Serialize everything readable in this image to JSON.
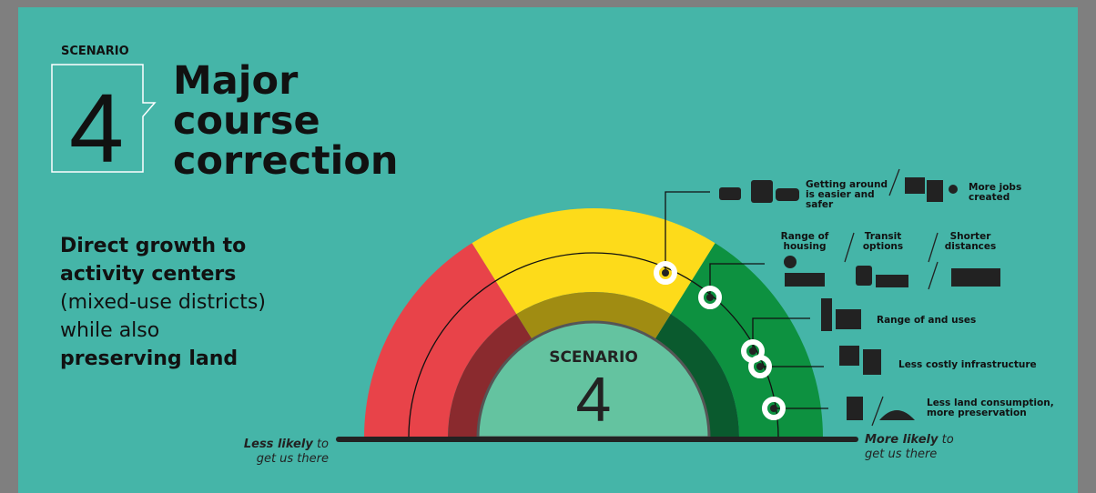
{
  "header": {
    "eyebrow": "SCENARIO",
    "number": "4",
    "title_lines": [
      "Major",
      "course",
      "correction"
    ]
  },
  "description": [
    {
      "text": "Direct growth to",
      "bold": true
    },
    {
      "text": "activity centers",
      "bold": true
    },
    {
      "text": "(mixed-use districts)",
      "bold": false
    },
    {
      "text": "while also",
      "bold": false
    },
    {
      "text": "preserving land",
      "bold": true
    }
  ],
  "gauge": {
    "label": "SCENARIO",
    "number": "4",
    "left": {
      "emphasis": "Less likely",
      "rest": "to",
      "line2": "get us there"
    },
    "right": {
      "emphasis": "More likely",
      "rest": "to",
      "line2": "get us there"
    }
  },
  "outcomes": [
    {
      "lines": [
        "Getting around",
        "is easier and",
        "safer"
      ]
    },
    {
      "lines": [
        "More jobs",
        "created"
      ]
    },
    {
      "lines": [
        "Range of",
        "housing"
      ]
    },
    {
      "lines": [
        "Transit",
        "options"
      ]
    },
    {
      "lines": [
        "Shorter",
        "distances"
      ]
    },
    {
      "lines": [
        "Range of and uses"
      ]
    },
    {
      "lines": [
        "Less costly infrastructure"
      ]
    },
    {
      "lines": [
        "Less land consumption,",
        "more preservation"
      ]
    }
  ]
}
